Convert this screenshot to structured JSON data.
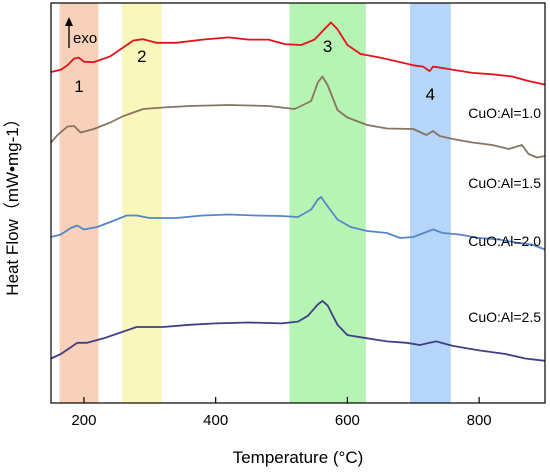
{
  "chart_data": {
    "type": "line",
    "xlabel": "Temperature (°C)",
    "ylabel": "Heat Flow（mW•mg-1）",
    "xlim": [
      150,
      900
    ],
    "x_ticks": [
      200,
      400,
      600,
      800
    ],
    "y_ticks_shown": false,
    "grid": false,
    "legend": "none (series labelled inline at right)",
    "annotations": {
      "exo": "exo",
      "exo_arrow_direction": "up"
    },
    "regions": [
      {
        "label": "1",
        "x_start": 163,
        "x_end": 222,
        "color": "#f6c9ad"
      },
      {
        "label": "2",
        "x_start": 258,
        "x_end": 318,
        "color": "#f8f6b0"
      },
      {
        "label": "3",
        "x_start": 512,
        "x_end": 628,
        "color": "#a9f2a6"
      },
      {
        "label": "4",
        "x_start": 695,
        "x_end": 757,
        "color": "#a9cff8"
      }
    ],
    "y_units": "relative (stacked, arbitrary offset)",
    "series": [
      {
        "name": "CuO:Al=1.0",
        "color": "#e3121b",
        "points": [
          [
            150,
            1.4
          ],
          [
            165,
            1.45
          ],
          [
            175,
            1.55
          ],
          [
            185,
            1.7
          ],
          [
            192,
            1.72
          ],
          [
            200,
            1.63
          ],
          [
            215,
            1.62
          ],
          [
            240,
            1.75
          ],
          [
            260,
            1.95
          ],
          [
            275,
            2.1
          ],
          [
            290,
            2.13
          ],
          [
            310,
            2.05
          ],
          [
            340,
            2.05
          ],
          [
            380,
            2.12
          ],
          [
            420,
            2.17
          ],
          [
            450,
            2.12
          ],
          [
            480,
            2.12
          ],
          [
            505,
            2.02
          ],
          [
            530,
            2.0
          ],
          [
            550,
            2.12
          ],
          [
            565,
            2.35
          ],
          [
            575,
            2.5
          ],
          [
            585,
            2.35
          ],
          [
            600,
            2.0
          ],
          [
            620,
            1.8
          ],
          [
            650,
            1.72
          ],
          [
            680,
            1.62
          ],
          [
            700,
            1.55
          ],
          [
            715,
            1.52
          ],
          [
            725,
            1.42
          ],
          [
            730,
            1.52
          ],
          [
            740,
            1.5
          ],
          [
            760,
            1.45
          ],
          [
            790,
            1.38
          ],
          [
            820,
            1.35
          ],
          [
            850,
            1.3
          ],
          [
            875,
            1.2
          ],
          [
            900,
            1.12
          ]
        ]
      },
      {
        "name": "CuO:Al=1.5",
        "color": "#887462",
        "points": [
          [
            150,
            0.55
          ],
          [
            160,
            0.7
          ],
          [
            175,
            0.87
          ],
          [
            185,
            0.88
          ],
          [
            195,
            0.75
          ],
          [
            215,
            0.82
          ],
          [
            240,
            0.95
          ],
          [
            260,
            1.08
          ],
          [
            290,
            1.22
          ],
          [
            320,
            1.25
          ],
          [
            360,
            1.28
          ],
          [
            420,
            1.3
          ],
          [
            480,
            1.28
          ],
          [
            520,
            1.22
          ],
          [
            545,
            1.38
          ],
          [
            555,
            1.75
          ],
          [
            562,
            1.87
          ],
          [
            570,
            1.7
          ],
          [
            585,
            1.2
          ],
          [
            600,
            1.05
          ],
          [
            630,
            0.9
          ],
          [
            660,
            0.83
          ],
          [
            700,
            0.82
          ],
          [
            720,
            0.7
          ],
          [
            730,
            0.78
          ],
          [
            740,
            0.68
          ],
          [
            760,
            0.62
          ],
          [
            790,
            0.55
          ],
          [
            820,
            0.5
          ],
          [
            845,
            0.42
          ],
          [
            865,
            0.5
          ],
          [
            875,
            0.32
          ],
          [
            888,
            0.25
          ],
          [
            900,
            0.28
          ]
        ]
      },
      {
        "name": "CuO:Al=2.0",
        "color": "#5686c8",
        "points": [
          [
            150,
            -0.1
          ],
          [
            165,
            -0.05
          ],
          [
            180,
            0.08
          ],
          [
            190,
            0.13
          ],
          [
            200,
            0.05
          ],
          [
            220,
            0.1
          ],
          [
            240,
            0.2
          ],
          [
            265,
            0.33
          ],
          [
            280,
            0.33
          ],
          [
            300,
            0.28
          ],
          [
            340,
            0.28
          ],
          [
            380,
            0.33
          ],
          [
            420,
            0.35
          ],
          [
            460,
            0.33
          ],
          [
            500,
            0.32
          ],
          [
            525,
            0.3
          ],
          [
            545,
            0.45
          ],
          [
            555,
            0.65
          ],
          [
            560,
            0.7
          ],
          [
            568,
            0.55
          ],
          [
            585,
            0.25
          ],
          [
            605,
            0.1
          ],
          [
            630,
            0.02
          ],
          [
            660,
            -0.02
          ],
          [
            680,
            -0.12
          ],
          [
            700,
            -0.1
          ],
          [
            720,
            0.0
          ],
          [
            730,
            0.05
          ],
          [
            745,
            -0.02
          ],
          [
            770,
            -0.05
          ],
          [
            800,
            -0.12
          ],
          [
            830,
            -0.15
          ],
          [
            860,
            -0.22
          ],
          [
            880,
            -0.25
          ],
          [
            900,
            -0.35
          ]
        ]
      },
      {
        "name": "CuO:Al=2.5",
        "color": "#3f3f86",
        "points": [
          [
            150,
            -1.3
          ],
          [
            165,
            -1.2
          ],
          [
            180,
            -1.05
          ],
          [
            190,
            -0.95
          ],
          [
            205,
            -0.95
          ],
          [
            230,
            -0.85
          ],
          [
            260,
            -0.7
          ],
          [
            280,
            -0.6
          ],
          [
            320,
            -0.6
          ],
          [
            360,
            -0.55
          ],
          [
            400,
            -0.52
          ],
          [
            450,
            -0.5
          ],
          [
            500,
            -0.52
          ],
          [
            525,
            -0.48
          ],
          [
            540,
            -0.35
          ],
          [
            555,
            -0.1
          ],
          [
            562,
            -0.02
          ],
          [
            570,
            -0.12
          ],
          [
            585,
            -0.55
          ],
          [
            600,
            -0.78
          ],
          [
            630,
            -0.85
          ],
          [
            660,
            -0.92
          ],
          [
            690,
            -0.95
          ],
          [
            710,
            -1.0
          ],
          [
            725,
            -0.95
          ],
          [
            735,
            -0.92
          ],
          [
            760,
            -1.02
          ],
          [
            800,
            -1.12
          ],
          [
            840,
            -1.2
          ],
          [
            870,
            -1.3
          ],
          [
            900,
            -1.35
          ]
        ]
      }
    ]
  }
}
